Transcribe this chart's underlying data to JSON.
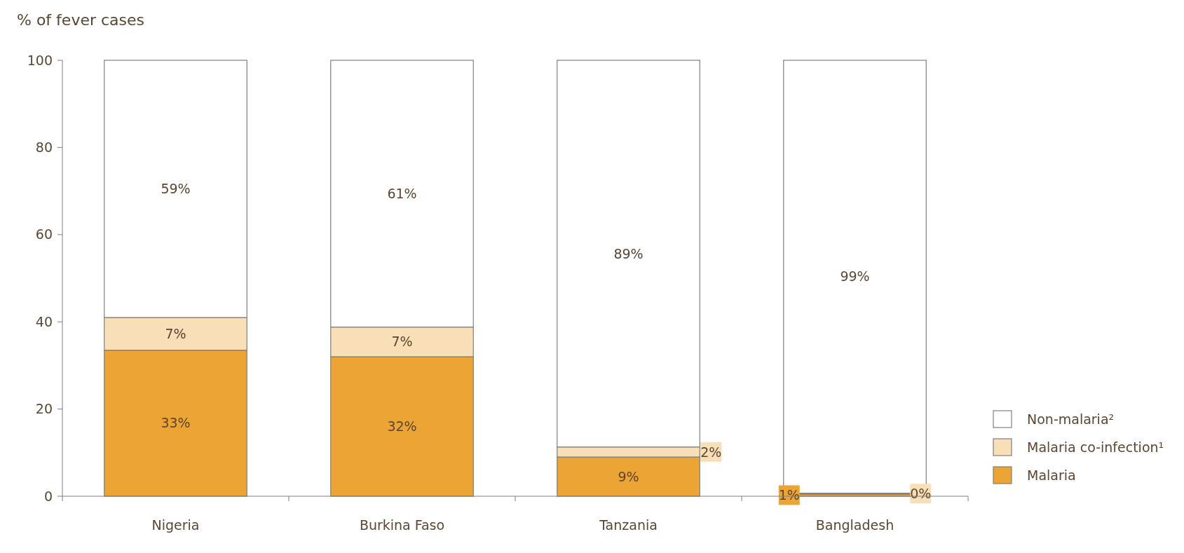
{
  "chart_data": {
    "type": "bar",
    "stacked": true,
    "ylabel": "% of fever cases",
    "categories": [
      "Nigeria",
      "Burkina Faso",
      "Tanzania",
      "Bangladesh"
    ],
    "series": [
      {
        "name": "Malaria",
        "color": "#eca534",
        "values": [
          33.5,
          32,
          9,
          0.5
        ],
        "value_labels": [
          "33%",
          "32%",
          "9%",
          "1%"
        ]
      },
      {
        "name": "Malaria co-infection¹",
        "color": "#f8dfb8",
        "values": [
          7.5,
          6.8,
          2.3,
          0.2
        ],
        "value_labels": [
          "7%",
          "7%",
          "2%",
          "0%"
        ]
      },
      {
        "name": "Non-malaria²",
        "color": "#ffffff",
        "values": [
          59,
          61.2,
          88.7,
          99.3
        ],
        "value_labels": [
          "59%",
          "61%",
          "89%",
          "99%"
        ]
      }
    ],
    "ylim": [
      0,
      100
    ],
    "yticks": [
      0,
      20,
      40,
      60,
      80,
      100
    ],
    "grid": false,
    "legend": "bottom right"
  }
}
